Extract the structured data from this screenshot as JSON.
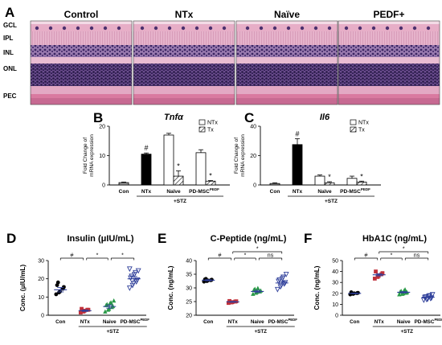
{
  "panels": {
    "A": "A",
    "B": "B",
    "C": "C",
    "D": "D",
    "E": "E",
    "F": "F"
  },
  "histology": {
    "columns": [
      "Control",
      "NTx",
      "Naïve",
      "PEDF+"
    ],
    "layers": [
      "GCL",
      "IPL",
      "INL",
      "ONL",
      "PEC"
    ]
  },
  "colors": {
    "tissue_pink": "#e7aec7",
    "nuclei_purple": "#3a2660",
    "rpe_pink": "#d97aa0",
    "con_dot": "#000000",
    "ntx_dot": "#c0303a",
    "naive_dot": "#2a9a48",
    "pd_dot": "#2f3f9a",
    "mean_line": "#2f3f9a"
  },
  "chart_data": [
    {
      "id": "B",
      "type": "bar",
      "title": "Tnfα",
      "ylabel": "Fold Change of mRNA expression",
      "ylim": [
        0,
        20
      ],
      "yticks": [
        "0",
        "10",
        "20"
      ],
      "categories": [
        "Con",
        "NTx",
        "Naïve",
        "PD-MSC",
        "PEDF"
      ],
      "group_label": "+STZ",
      "legend": [
        "NTx",
        "Tx"
      ],
      "bars": [
        {
          "group": "Con",
          "kind": "con",
          "value": 0.8,
          "err": 0.2
        },
        {
          "group": "NTx",
          "kind": "ntx",
          "value": 10.5,
          "err": 0.4
        },
        {
          "group": "Naïve",
          "kind": "open",
          "value": 17.0,
          "err": 0.6
        },
        {
          "group": "Naïve",
          "kind": "hatch",
          "value": 3.0,
          "err": 1.8
        },
        {
          "group": "PD-MSC",
          "kind": "open",
          "value": 11.0,
          "err": 1.0
        },
        {
          "group": "PD-MSC",
          "kind": "hatch",
          "value": 1.3,
          "err": 0.2
        }
      ],
      "annotations": [
        "#",
        "*",
        "*"
      ]
    },
    {
      "id": "C",
      "type": "bar",
      "title": "Il6",
      "ylabel": "Fold Change of mRNA expression",
      "ylim": [
        0,
        40
      ],
      "yticks": [
        "0",
        "20",
        "40"
      ],
      "categories": [
        "Con",
        "NTx",
        "Naïve",
        "PD-MSC",
        "PEDF"
      ],
      "group_label": "+STZ",
      "legend": [
        "NTx",
        "Tx"
      ],
      "bars": [
        {
          "group": "Con",
          "kind": "con",
          "value": 1.0,
          "err": 0.5
        },
        {
          "group": "NTx",
          "kind": "ntx",
          "value": 27.5,
          "err": 4.0
        },
        {
          "group": "Naïve",
          "kind": "open",
          "value": 6.0,
          "err": 0.8
        },
        {
          "group": "Naïve",
          "kind": "hatch",
          "value": 1.5,
          "err": 0.7
        },
        {
          "group": "PD-MSC",
          "kind": "open",
          "value": 4.5,
          "err": 1.5
        },
        {
          "group": "PD-MSC",
          "kind": "hatch",
          "value": 2.0,
          "err": 0.6
        }
      ],
      "annotations": [
        "#",
        "*",
        "*"
      ]
    },
    {
      "id": "D",
      "type": "scatter",
      "title": "Insulin (μIU/mL)",
      "ylabel": "Conc. (μIU/mL)",
      "ylim": [
        0,
        30
      ],
      "yticks": [
        "0",
        "10",
        "20",
        "30"
      ],
      "categories": [
        "Con",
        "NTx",
        "Naive",
        "PD-MSC",
        "PEDF"
      ],
      "group_label": "+STZ",
      "sig": [
        "#",
        "*",
        "*"
      ],
      "groups": [
        {
          "name": "Con",
          "color": "con",
          "marker": "circle",
          "mean": 14.0,
          "sem": 1.2,
          "points": [
            11.5,
            12.5,
            13.0,
            14.5,
            15.5,
            16.5,
            18.0
          ]
        },
        {
          "name": "NTx",
          "color": "ntx",
          "marker": "square",
          "mean": 2.5,
          "sem": 0.4,
          "points": [
            1.5,
            2.0,
            2.5,
            3.0,
            3.0,
            3.5
          ]
        },
        {
          "name": "Naive",
          "color": "naive",
          "marker": "triangle",
          "mean": 4.8,
          "sem": 0.9,
          "points": [
            2.0,
            3.0,
            3.5,
            4.5,
            5.0,
            5.5,
            6.0,
            6.5,
            7.0,
            8.0
          ]
        },
        {
          "name": "PD-MSC",
          "color": "pd",
          "marker": "triangle-down",
          "mean": 20.0,
          "sem": 1.3,
          "points": [
            15.0,
            16.5,
            17.5,
            18.5,
            19.5,
            20.5,
            21.5,
            22.5,
            23.5,
            24.5,
            25.5
          ]
        }
      ]
    },
    {
      "id": "E",
      "type": "scatter",
      "title": "C-Peptide (ng/mL)",
      "ylabel": "Conc. (ng/mL)",
      "ylim": [
        20,
        40
      ],
      "yticks": [
        "20",
        "25",
        "30",
        "35",
        "40"
      ],
      "categories": [
        "Con",
        "NTx",
        "Naive",
        "PD-MSC",
        "PEDF"
      ],
      "group_label": "+STZ",
      "sig": [
        "#",
        "*",
        "ns",
        "*"
      ],
      "groups": [
        {
          "name": "Con",
          "color": "con",
          "marker": "circle",
          "mean": 32.8,
          "sem": 0.2,
          "points": [
            32.3,
            32.5,
            32.7,
            32.8,
            33.0,
            33.1,
            33.3
          ]
        },
        {
          "name": "NTx",
          "color": "ntx",
          "marker": "square",
          "mean": 24.9,
          "sem": 0.15,
          "points": [
            24.5,
            24.7,
            24.8,
            25.0,
            25.1,
            25.2
          ]
        },
        {
          "name": "Naive",
          "color": "naive",
          "marker": "triangle",
          "mean": 28.7,
          "sem": 0.4,
          "points": [
            27.8,
            28.2,
            28.5,
            28.7,
            29.0,
            29.3,
            29.6,
            29.9
          ]
        },
        {
          "name": "PD-MSC",
          "color": "pd",
          "marker": "triangle-down",
          "mean": 31.8,
          "sem": 0.6,
          "points": [
            29.5,
            30.5,
            31.0,
            31.5,
            32.0,
            32.5,
            33.0,
            33.5,
            34.0,
            35.0
          ]
        }
      ]
    },
    {
      "id": "F",
      "type": "scatter",
      "title": "HbA1C (ng/mL)",
      "ylabel": "Conc. (ng/mL)",
      "ylim": [
        0,
        50
      ],
      "yticks": [
        "0",
        "10",
        "20",
        "30",
        "40",
        "50"
      ],
      "categories": [
        "Con",
        "NTx",
        "Naive",
        "PD-MSC",
        "PEDF"
      ],
      "group_label": "+STZ",
      "sig": [
        "#",
        "*",
        "ns",
        "*"
      ],
      "groups": [
        {
          "name": "Con",
          "color": "con",
          "marker": "circle",
          "mean": 20.0,
          "sem": 0.3,
          "points": [
            19.0,
            19.5,
            20.0,
            20.2,
            20.5,
            21.0
          ]
        },
        {
          "name": "NTx",
          "color": "ntx",
          "marker": "square",
          "mean": 37.0,
          "sem": 1.0,
          "points": [
            33.5,
            35.0,
            36.0,
            37.5,
            38.5,
            40.0
          ]
        },
        {
          "name": "Naive",
          "color": "naive",
          "marker": "triangle",
          "mean": 21.0,
          "sem": 0.6,
          "points": [
            19.0,
            19.5,
            20.0,
            20.5,
            21.0,
            21.5,
            22.0,
            22.5,
            23.5
          ]
        },
        {
          "name": "PD-MSC",
          "color": "pd",
          "marker": "triangle-down",
          "mean": 16.5,
          "sem": 0.5,
          "points": [
            14.0,
            14.5,
            15.0,
            15.5,
            16.0,
            16.5,
            17.0,
            17.5,
            18.0,
            19.0
          ]
        }
      ]
    }
  ]
}
